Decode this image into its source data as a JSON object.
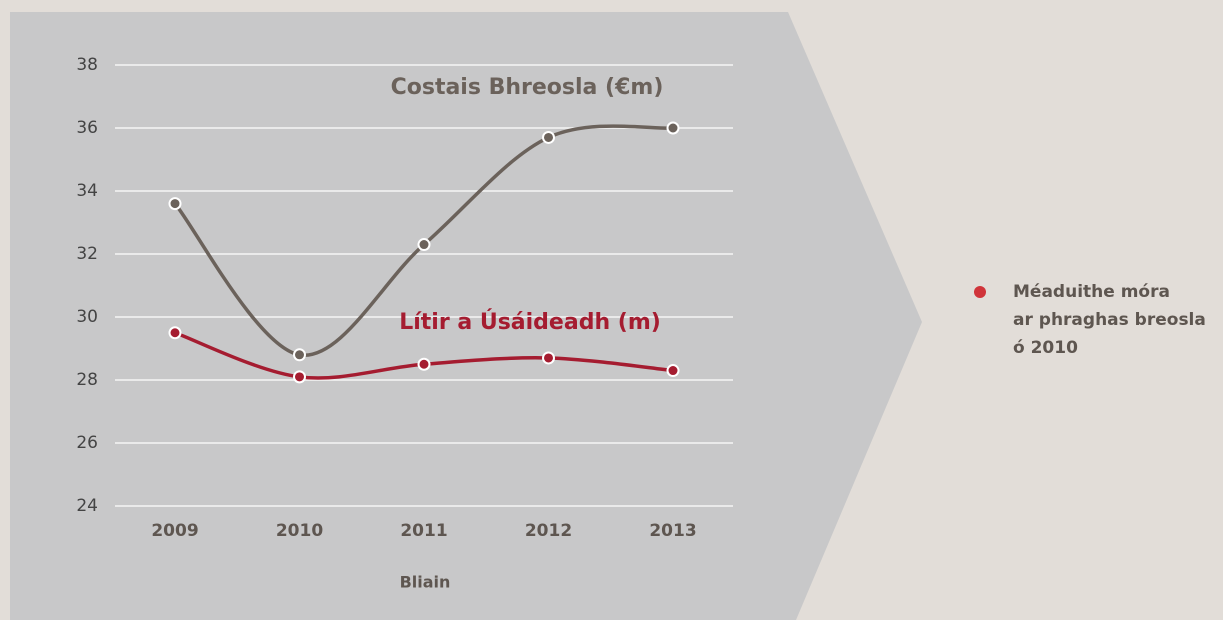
{
  "chart_data": {
    "type": "line",
    "categories": [
      "2009",
      "2010",
      "2011",
      "2012",
      "2013"
    ],
    "series": [
      {
        "name": "Costais Bhreosla (€m)",
        "color": "#6b625b",
        "values": [
          33.6,
          28.8,
          32.3,
          35.7,
          36.0
        ]
      },
      {
        "name": "Lítir a Úsáideadh (m)",
        "color": "#a51c30",
        "values": [
          29.5,
          28.1,
          28.5,
          28.7,
          28.3
        ]
      }
    ],
    "xlabel": "Bliain",
    "ylim": [
      24,
      38
    ],
    "yticks": [
      24,
      26,
      28,
      30,
      32,
      34,
      36,
      38
    ],
    "grid": true,
    "annotation": {
      "color": "#d0343a",
      "lines": [
        "Méaduithe móra",
        "ar phraghas breosla",
        "ó 2010"
      ]
    }
  }
}
